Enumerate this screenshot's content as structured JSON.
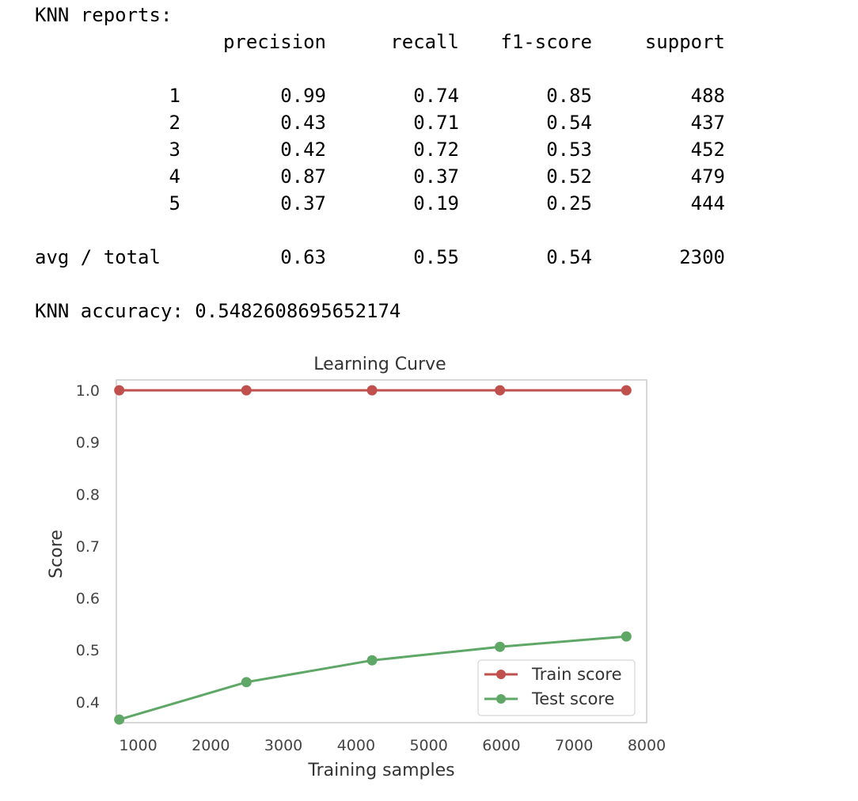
{
  "report": {
    "heading": "KNN reports:",
    "columns": [
      "precision",
      "recall",
      "f1-score",
      "support"
    ],
    "rows": [
      {
        "label": "1",
        "values": [
          "0.99",
          "0.74",
          "0.85",
          "488"
        ]
      },
      {
        "label": "2",
        "values": [
          "0.43",
          "0.71",
          "0.54",
          "437"
        ]
      },
      {
        "label": "3",
        "values": [
          "0.42",
          "0.72",
          "0.53",
          "452"
        ]
      },
      {
        "label": "4",
        "values": [
          "0.87",
          "0.37",
          "0.52",
          "479"
        ]
      },
      {
        "label": "5",
        "values": [
          "0.37",
          "0.19",
          "0.25",
          "444"
        ]
      }
    ],
    "total": {
      "label": "avg / total",
      "values": [
        "0.63",
        "0.55",
        "0.54",
        "2300"
      ]
    },
    "accuracy_line": "KNN accuracy: 0.5482608695652174"
  },
  "chart_data": {
    "type": "line",
    "title": "Learning Curve",
    "xlabel": "Training samples",
    "ylabel": "Score",
    "xlim": [
      700,
      8000
    ],
    "ylim": [
      0.36,
      1.02
    ],
    "xticks": [
      1000,
      2000,
      3000,
      4000,
      5000,
      6000,
      7000,
      8000
    ],
    "yticks": [
      0.4,
      0.5,
      0.6,
      0.7,
      0.8,
      0.9,
      1.0
    ],
    "ytick_labels": [
      "0.4",
      "0.5",
      "0.6",
      "0.7",
      "0.8",
      "0.9",
      "1.0"
    ],
    "grid": false,
    "legend_position": "lower-right",
    "series": [
      {
        "name": "Train score",
        "color": "#c0504d",
        "x": [
          740,
          2490,
          4220,
          5980,
          7720
        ],
        "y": [
          1.0,
          1.0,
          1.0,
          1.0,
          1.0
        ]
      },
      {
        "name": "Test score",
        "color": "#5fa766",
        "x": [
          740,
          2490,
          4220,
          5980,
          7720
        ],
        "y": [
          0.366,
          0.438,
          0.48,
          0.506,
          0.526
        ]
      }
    ]
  }
}
